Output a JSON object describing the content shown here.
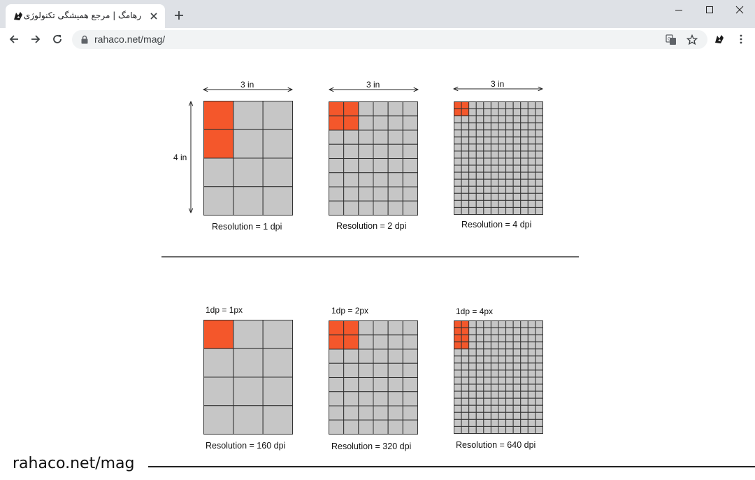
{
  "browser": {
    "tab_title": "رهامگ | مرجع همیشگی تکنولوژی",
    "url": "rahaco.net/mag/",
    "icons": {
      "favicon": "rahaco-logo-icon",
      "tab_close": "close-icon",
      "new_tab": "plus-icon",
      "minimize": "minimize-icon",
      "maximize": "maximize-icon",
      "close": "close-icon",
      "back": "arrow-left-icon",
      "forward": "arrow-right-icon",
      "reload": "reload-icon",
      "lock": "lock-icon",
      "translate": "translate-icon",
      "bookmark": "star-icon",
      "extension": "rahaco-extension-icon",
      "menu": "kebab-menu-icon"
    }
  },
  "figure": {
    "colors": {
      "highlight": "#f4572b",
      "cell": "#c6c6c6",
      "line": "#333333"
    },
    "dim_width": "3 in",
    "dim_height": "4 in",
    "top_row": [
      {
        "subdivision": 1,
        "highlight_cells": 2,
        "caption": "Resolution = 1 dpi"
      },
      {
        "subdivision": 2,
        "highlight_cells": 4,
        "caption": "Resolution = 2 dpi"
      },
      {
        "subdivision": 4,
        "highlight_cells": 4,
        "caption": "Resolution = 4 dpi"
      }
    ],
    "bottom_row": [
      {
        "subdivision": 1,
        "highlight_cells": 1,
        "label": "1dp = 1px",
        "caption": "Resolution = 160 dpi"
      },
      {
        "subdivision": 2,
        "highlight_cells": 4,
        "label": "1dp = 2px",
        "caption": "Resolution = 320 dpi"
      },
      {
        "subdivision": 4,
        "highlight_cells": 8,
        "label": "1dp = 4px",
        "caption": "Resolution = 640 dpi"
      }
    ]
  },
  "footer": {
    "watermark": "rahaco.net/mag"
  }
}
